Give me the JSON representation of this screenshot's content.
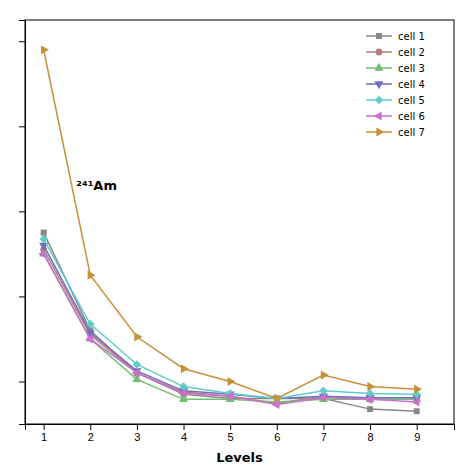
{
  "chart_data": {
    "type": "line",
    "x": [
      1,
      2,
      3,
      4,
      5,
      6,
      7,
      8,
      9
    ],
    "series": [
      {
        "name": "cell 1",
        "color": "#888888",
        "marker": "square",
        "values": [
          5.5,
          3.2,
          2.2,
          1.7,
          1.6,
          1.6,
          1.6,
          1.35,
          1.3
        ]
      },
      {
        "name": "cell 2",
        "color": "#b08080",
        "marker": "circle",
        "values": [
          5.1,
          3.1,
          2.2,
          1.75,
          1.65,
          1.48,
          1.65,
          1.58,
          1.58
        ]
      },
      {
        "name": "cell 3",
        "color": "#70c070",
        "marker": "triangle-up",
        "values": [
          5.0,
          3.0,
          2.05,
          1.58,
          1.58,
          1.52,
          1.58,
          1.58,
          1.58
        ]
      },
      {
        "name": "cell 4",
        "color": "#7070bb",
        "marker": "triangle-down",
        "values": [
          5.2,
          3.15,
          2.25,
          1.78,
          1.7,
          1.6,
          1.65,
          1.62,
          1.62
        ]
      },
      {
        "name": "cell 5",
        "color": "#60cccc",
        "marker": "diamond",
        "values": [
          5.35,
          3.35,
          2.4,
          1.88,
          1.72,
          1.6,
          1.78,
          1.72,
          1.7
        ]
      },
      {
        "name": "cell 6",
        "color": "#cc70cc",
        "marker": "triangle-left",
        "values": [
          5.0,
          3.0,
          2.2,
          1.72,
          1.65,
          1.46,
          1.62,
          1.58,
          1.52
        ]
      },
      {
        "name": "cell 7",
        "color": "#c8903a",
        "marker": "triangle-right",
        "values": [
          9.8,
          4.5,
          3.05,
          2.3,
          2.0,
          1.6,
          2.15,
          1.88,
          1.82
        ]
      }
    ],
    "xlabel": "Levels",
    "annotation": "²⁴¹Am",
    "annotation_x": 1.7,
    "annotation_y": 6.5,
    "xlim": [
      0.6,
      9.8
    ],
    "ylim": [
      1.0,
      10.5
    ],
    "xticks": [
      1,
      2,
      3,
      4,
      5,
      6,
      7,
      8,
      9
    ],
    "yticks": [
      2,
      4,
      6,
      8,
      10
    ],
    "tick_labels": "x",
    "grid": false,
    "legend": "upper-right"
  }
}
